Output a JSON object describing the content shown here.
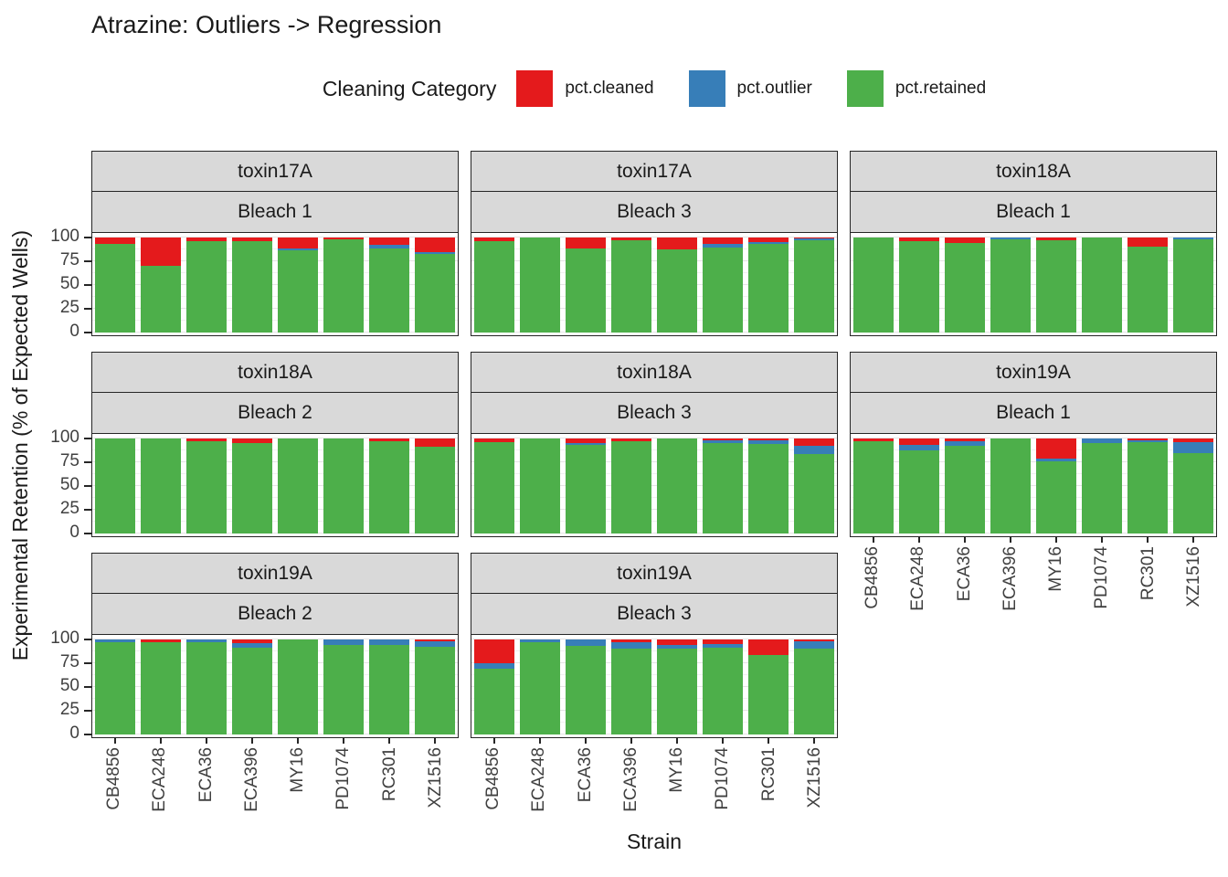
{
  "title": "Atrazine: Outliers -> Regression",
  "legend": {
    "title": "Cleaning Category",
    "items": [
      {
        "label": "pct.cleaned",
        "color": "#e41a1c"
      },
      {
        "label": "pct.outlier",
        "color": "#377eb8"
      },
      {
        "label": "pct.retained",
        "color": "#4daf4a"
      }
    ]
  },
  "axes": {
    "y_title": "Experimental Retention (% of Expected Wells)",
    "x_title": "Strain",
    "y_ticks": [
      100,
      75,
      50,
      25,
      0
    ]
  },
  "chart_data": {
    "type": "bar",
    "stacked": true,
    "ylim": [
      0,
      100
    ],
    "grid": "major-and-minor",
    "legend_position": "top",
    "categories": [
      "CB4856",
      "ECA248",
      "ECA36",
      "ECA396",
      "MY16",
      "PD1074",
      "RC301",
      "XZ1516"
    ],
    "stack_order_bottom_to_top": [
      "pct.retained",
      "pct.outlier",
      "pct.cleaned"
    ],
    "colors": {
      "pct.cleaned": "#e41a1c",
      "pct.outlier": "#377eb8",
      "pct.retained": "#4daf4a"
    },
    "facet_layout": {
      "cols": 3,
      "rows": 3,
      "empty_last_cell": true
    },
    "panels": [
      {
        "toxin": "toxin17A",
        "bleach": "Bleach 1",
        "values": {
          "pct.retained": [
            93,
            70,
            96,
            96,
            86,
            98,
            88,
            83
          ],
          "pct.outlier": [
            0,
            0,
            0,
            0,
            2,
            0,
            4,
            2
          ],
          "pct.cleaned": [
            7,
            30,
            4,
            4,
            12,
            2,
            8,
            15
          ]
        }
      },
      {
        "toxin": "toxin17A",
        "bleach": "Bleach 3",
        "values": {
          "pct.retained": [
            96,
            100,
            88,
            97,
            87,
            89,
            93,
            97
          ],
          "pct.outlier": [
            0,
            0,
            0,
            0,
            0,
            4,
            2,
            2
          ],
          "pct.cleaned": [
            4,
            0,
            12,
            3,
            13,
            7,
            5,
            1
          ]
        }
      },
      {
        "toxin": "toxin18A",
        "bleach": "Bleach 1",
        "values": {
          "pct.retained": [
            100,
            96,
            94,
            98,
            97,
            100,
            90,
            98
          ],
          "pct.outlier": [
            0,
            0,
            0,
            2,
            0,
            0,
            0,
            2
          ],
          "pct.cleaned": [
            0,
            4,
            6,
            0,
            3,
            0,
            10,
            0
          ]
        }
      },
      {
        "toxin": "toxin18A",
        "bleach": "Bleach 2",
        "values": {
          "pct.retained": [
            100,
            100,
            97,
            95,
            100,
            100,
            97,
            91
          ],
          "pct.outlier": [
            0,
            0,
            0,
            0,
            0,
            0,
            0,
            0
          ],
          "pct.cleaned": [
            0,
            0,
            3,
            5,
            0,
            0,
            3,
            9
          ]
        }
      },
      {
        "toxin": "toxin18A",
        "bleach": "Bleach 3",
        "values": {
          "pct.retained": [
            96,
            100,
            93,
            97,
            100,
            95,
            94,
            84
          ],
          "pct.outlier": [
            0,
            0,
            2,
            0,
            0,
            3,
            4,
            8
          ],
          "pct.cleaned": [
            4,
            0,
            5,
            3,
            0,
            2,
            2,
            8
          ]
        }
      },
      {
        "toxin": "toxin19A",
        "bleach": "Bleach 1",
        "values": {
          "pct.retained": [
            97,
            87,
            92,
            100,
            76,
            95,
            96,
            85
          ],
          "pct.outlier": [
            0,
            6,
            5,
            0,
            3,
            5,
            2,
            11
          ],
          "pct.cleaned": [
            3,
            7,
            3,
            0,
            21,
            0,
            2,
            4
          ]
        }
      },
      {
        "toxin": "toxin19A",
        "bleach": "Bleach 2",
        "values": {
          "pct.retained": [
            97,
            97,
            97,
            91,
            100,
            94,
            94,
            92
          ],
          "pct.outlier": [
            3,
            0,
            3,
            5,
            0,
            6,
            6,
            6
          ],
          "pct.cleaned": [
            0,
            3,
            0,
            4,
            0,
            0,
            0,
            2
          ]
        }
      },
      {
        "toxin": "toxin19A",
        "bleach": "Bleach 3",
        "values": {
          "pct.retained": [
            69,
            97,
            93,
            90,
            90,
            91,
            84,
            90
          ],
          "pct.outlier": [
            6,
            3,
            7,
            7,
            4,
            4,
            0,
            8
          ],
          "pct.cleaned": [
            25,
            0,
            0,
            3,
            6,
            5,
            16,
            2
          ]
        }
      }
    ],
    "panels_with_x_labels": [
      5,
      6,
      7
    ],
    "panels_with_y_labels": [
      0,
      3,
      6
    ]
  }
}
